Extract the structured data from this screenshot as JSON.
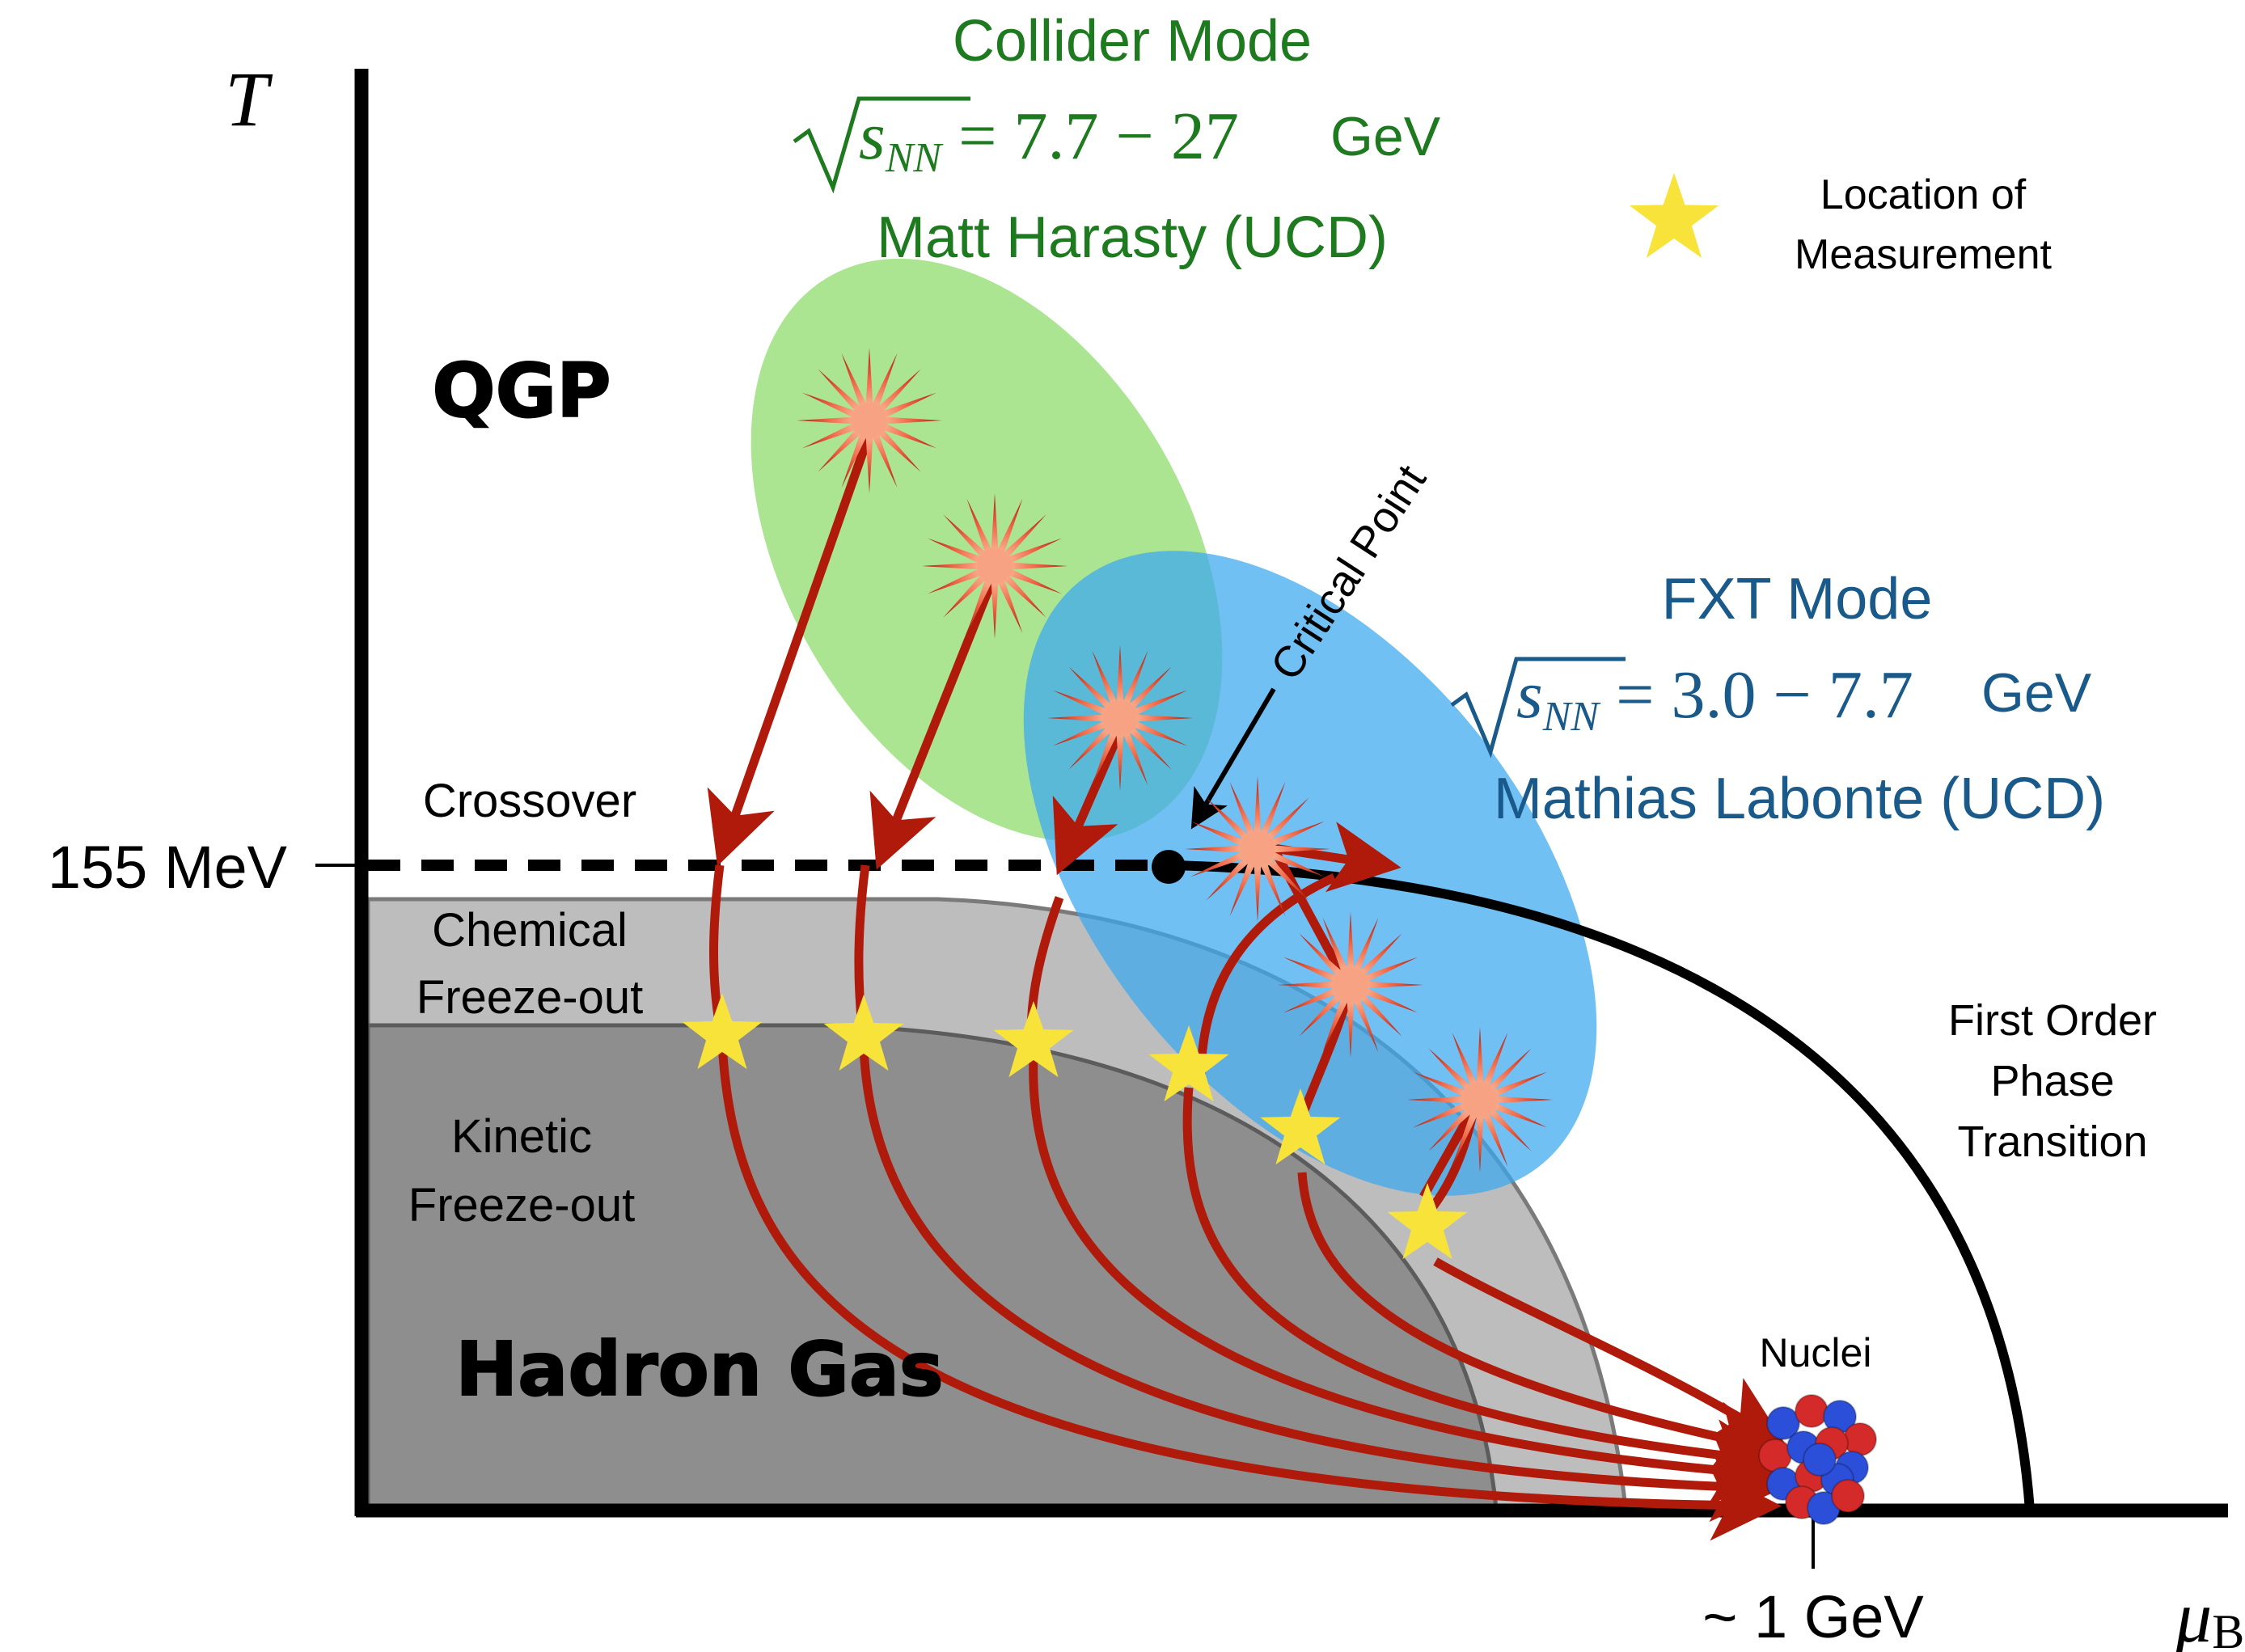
{
  "axes": {
    "y_label": "T",
    "x_label_main": "μ",
    "x_label_sub": "B",
    "y_tick": "155 MeV",
    "x_tick": "~ 1 GeV"
  },
  "regions": {
    "qgp": "QGP",
    "hadron_gas": "Hadron Gas",
    "crossover": "Crossover",
    "chemical_line1": "Chemical",
    "chemical_line2": "Freeze-out",
    "kinetic_line1": "Kinetic",
    "kinetic_line2": "Freeze-out",
    "first_order_line1": "First Order",
    "first_order_line2": "Phase",
    "first_order_line3": "Transition",
    "critical_point": "Critical Point",
    "nuclei": "Nuclei"
  },
  "collider": {
    "title": "Collider Mode",
    "sqrt_var": "s",
    "sqrt_sub": "NN",
    "range": " = 7.7 − 27",
    "unit": " GeV",
    "person": "Matt Harasty (UCD)"
  },
  "fxt": {
    "title": "FXT Mode",
    "sqrt_var": "s",
    "sqrt_sub": "NN",
    "range": " = 3.0 − 7.7",
    "unit": " GeV",
    "person": "Mathias Labonte (UCD)"
  },
  "legend": {
    "line1": "Location of",
    "line2": "Measurement"
  },
  "colors": {
    "collider_green": "#1e7a1e",
    "fxt_blue": "#1a5a8a",
    "collider_ellipse": "#8fdc6e",
    "fxt_ellipse": "#3aa8f0",
    "arrow_red": "#b01a0a",
    "star_yellow": "#f7e33a",
    "chemical_gray": "#bdbdbd",
    "kinetic_gray": "#8e8e8e"
  }
}
